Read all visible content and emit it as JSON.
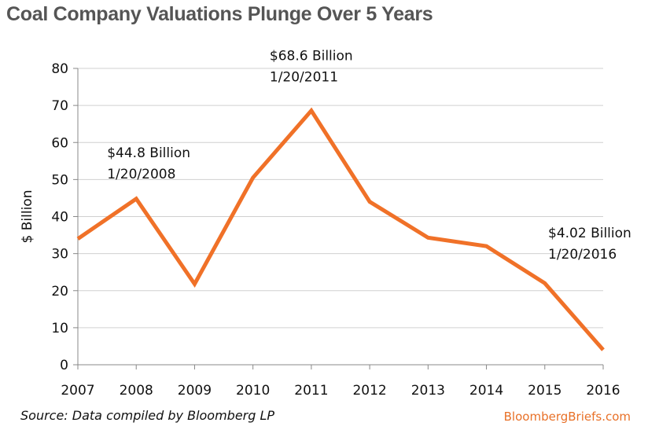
{
  "chart_data": {
    "type": "line",
    "title": "Coal Company Valuations Plunge Over 5 Years",
    "ylabel": "$ Billion",
    "xlabel": "",
    "x": [
      2007,
      2008,
      2009,
      2010,
      2011,
      2012,
      2013,
      2014,
      2015,
      2016
    ],
    "x_tick_labels": [
      "2007",
      "2008",
      "2009",
      "2010",
      "2011",
      "2012",
      "2013",
      "2014",
      "2015",
      "2016"
    ],
    "y_ticks": [
      0,
      10,
      20,
      30,
      40,
      50,
      60,
      70,
      80
    ],
    "ylim": [
      0,
      80
    ],
    "grid": true,
    "series": [
      {
        "values": [
          34.0,
          44.8,
          21.8,
          50.5,
          68.6,
          44.0,
          34.3,
          32.0,
          22.0,
          4.02
        ]
      }
    ],
    "annotations": [
      {
        "line1": "$44.8 Billion",
        "line2": "1/20/2008",
        "x": 2008,
        "y": 44.8
      },
      {
        "line1": "$68.6 Billion",
        "line2": "1/20/2011",
        "x": 2011,
        "y": 68.6
      },
      {
        "line1": "$4.02 Billion",
        "line2": "1/20/2016",
        "x": 2016,
        "y": 4.02
      }
    ],
    "colors": {
      "line": "#f07128",
      "grid": "#d0d0d0",
      "axis": "#888888"
    }
  },
  "footer": {
    "source": "Source: Data compiled by Bloomberg LP",
    "brand": "BloombergBriefs.com"
  }
}
